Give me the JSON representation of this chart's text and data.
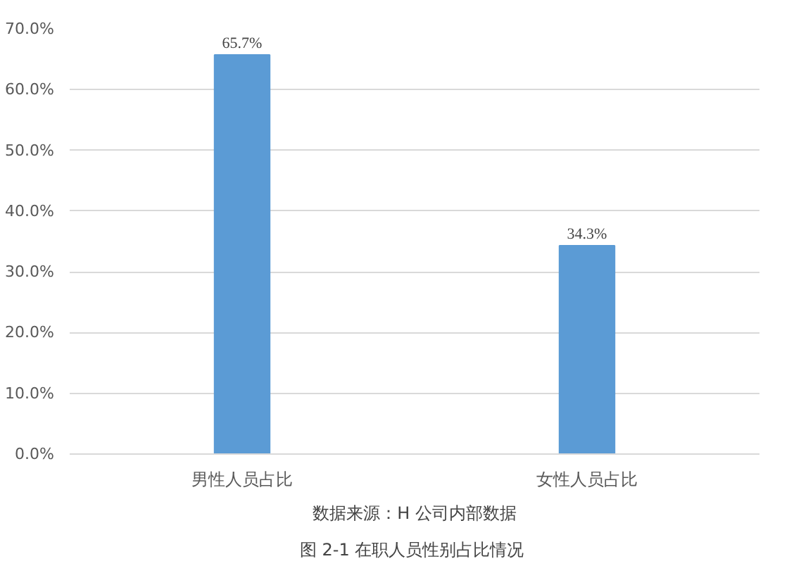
{
  "chart_data": {
    "type": "bar",
    "categories": [
      "男性人员占比",
      "女性人员占比"
    ],
    "values": [
      65.7,
      34.3
    ],
    "color": "#5b9bd5",
    "value_labels": [
      "65.7%",
      "34.3%"
    ],
    "ylim": [
      0,
      70
    ],
    "yticks": [
      {
        "value": 0,
        "label": "0.0%"
      },
      {
        "value": 10,
        "label": "10.0%"
      },
      {
        "value": 20,
        "label": "20.0%"
      },
      {
        "value": 30,
        "label": "30.0%"
      },
      {
        "value": 40,
        "label": "40.0%"
      },
      {
        "value": 50,
        "label": "50.0%"
      },
      {
        "value": 60,
        "label": "60.0%"
      },
      {
        "value": 70,
        "label": "70.0%"
      }
    ],
    "grid": "y",
    "annotations": [
      "数据来源：H 公司内部数据",
      "图 2-1  在职人员性别占比情况"
    ]
  }
}
